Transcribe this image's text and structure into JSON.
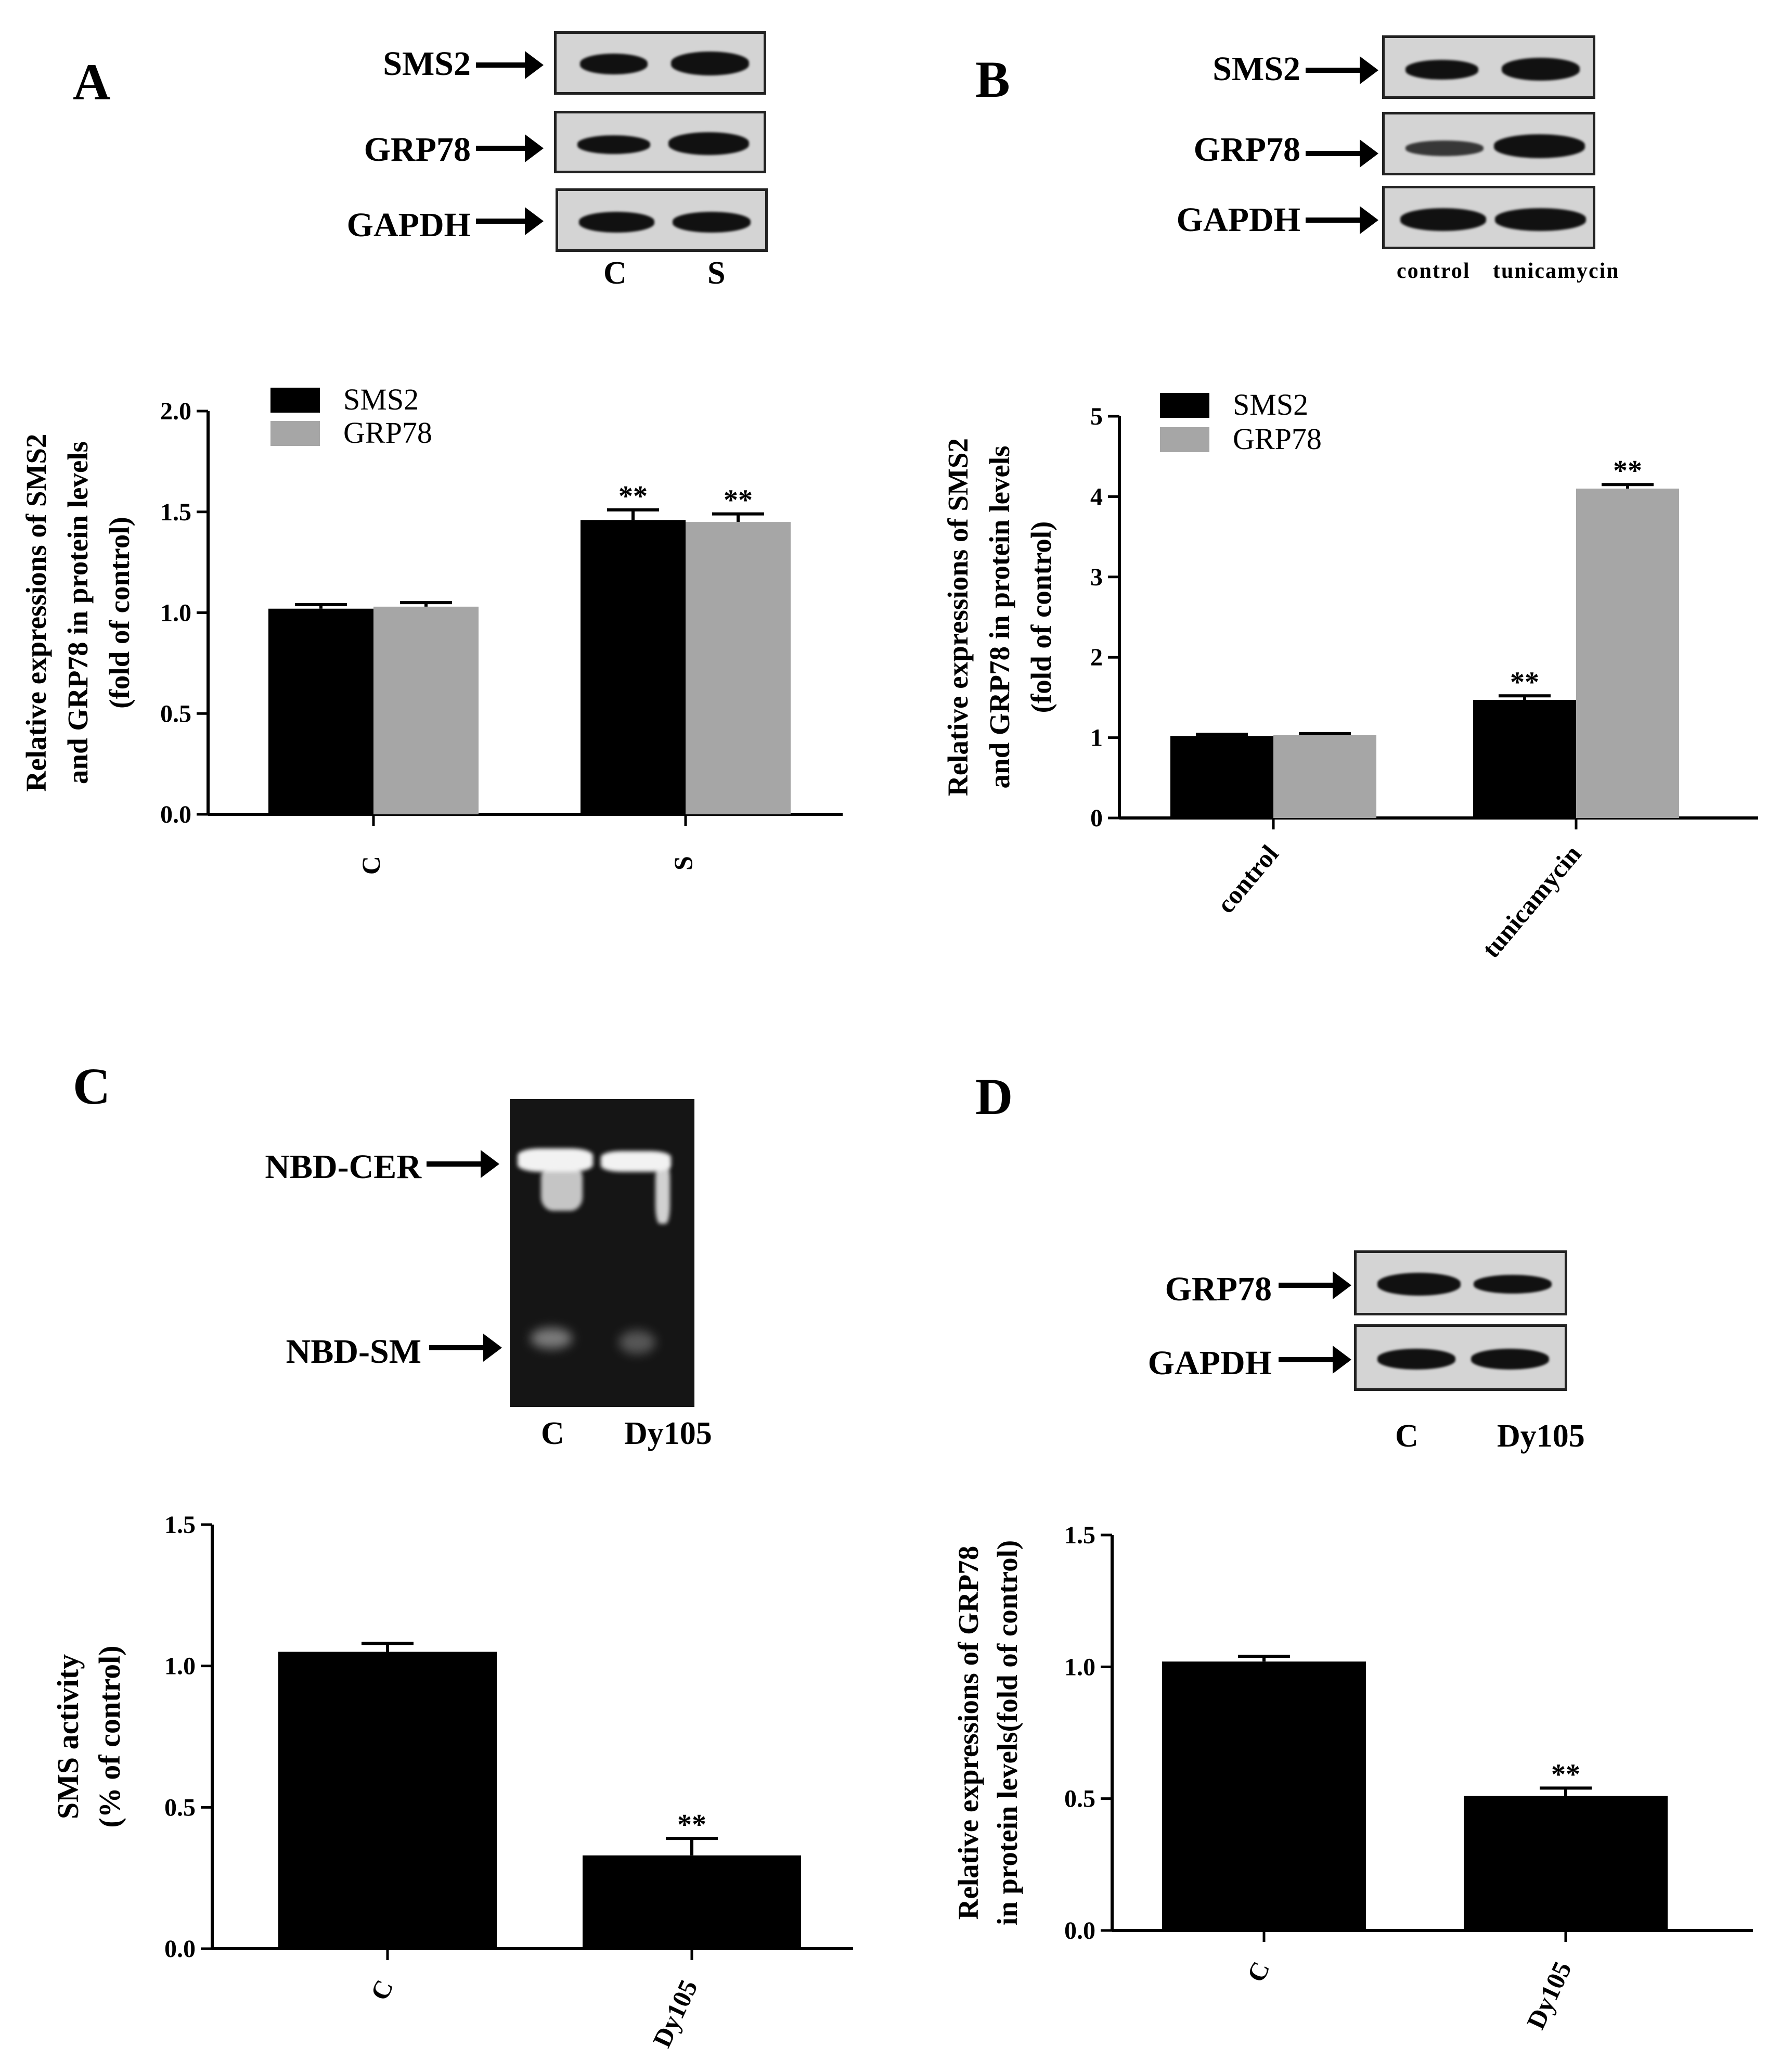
{
  "panels": {
    "A": {
      "letter": "A",
      "blot": {
        "rows": [
          "SMS2",
          "GRP78",
          "GAPDH"
        ],
        "lanes": [
          "C",
          "S"
        ]
      }
    },
    "B": {
      "letter": "B",
      "blot": {
        "rows": [
          "SMS2",
          "GRP78",
          "GAPDH"
        ],
        "lanes": [
          "control",
          "tunicamycin"
        ]
      }
    },
    "C": {
      "letter": "C",
      "tlc": {
        "rows": [
          "NBD-CER",
          "NBD-SM"
        ],
        "lanes": [
          "C",
          "Dy105"
        ]
      }
    },
    "D": {
      "letter": "D",
      "blot": {
        "rows": [
          "GRP78",
          "GAPDH"
        ],
        "lanes": [
          "C",
          "Dy105"
        ]
      }
    }
  },
  "chart_data": [
    {
      "id": "A",
      "type": "bar",
      "categories": [
        "C",
        "S"
      ],
      "series": [
        {
          "name": "SMS2",
          "color": "#000000",
          "values": [
            1.02,
            1.46
          ],
          "errors": [
            0.02,
            0.05
          ],
          "significance": [
            "",
            "**"
          ]
        },
        {
          "name": "GRP78",
          "color": "#a6a6a6",
          "values": [
            1.03,
            1.45
          ],
          "errors": [
            0.02,
            0.04
          ],
          "significance": [
            "",
            "**"
          ]
        }
      ],
      "ylabel_lines": [
        "Relative expressions of SMS2",
        "and GRP78 in protein levels",
        "(fold of control)"
      ],
      "ylim": [
        0,
        2.0
      ],
      "yticks": [
        "0.0",
        "0.5",
        "1.0",
        "1.5",
        "2.0"
      ],
      "legend": "top-left"
    },
    {
      "id": "B",
      "type": "bar",
      "categories": [
        "control",
        "tunicamycin"
      ],
      "series": [
        {
          "name": "SMS2",
          "color": "#000000",
          "values": [
            1.02,
            1.47
          ],
          "errors": [
            0.02,
            0.05
          ],
          "significance": [
            "",
            "**"
          ]
        },
        {
          "name": "GRP78",
          "color": "#a6a6a6",
          "values": [
            1.03,
            4.1
          ],
          "errors": [
            0.02,
            0.05
          ],
          "significance": [
            "",
            "**"
          ]
        }
      ],
      "ylabel_lines": [
        "Relative expressions of SMS2",
        "and GRP78 in protein levels",
        "(fold of control)"
      ],
      "ylim": [
        0,
        5
      ],
      "yticks": [
        "0",
        "1",
        "2",
        "3",
        "4",
        "5"
      ],
      "legend": "top-left"
    },
    {
      "id": "C",
      "type": "bar",
      "categories": [
        "C",
        "Dy105"
      ],
      "series": [
        {
          "color": "#000000",
          "values": [
            1.05,
            0.33
          ],
          "errors": [
            0.03,
            0.06
          ],
          "significance": [
            "",
            "**"
          ]
        }
      ],
      "ylabel_lines": [
        "SMS activity",
        "(% of control)"
      ],
      "ylim": [
        0,
        1.5
      ],
      "yticks": [
        "0.0",
        "0.5",
        "1.0",
        "1.5"
      ]
    },
    {
      "id": "D",
      "type": "bar",
      "categories": [
        "C",
        "Dy105"
      ],
      "series": [
        {
          "color": "#000000",
          "values": [
            1.02,
            0.51
          ],
          "errors": [
            0.02,
            0.03
          ],
          "significance": [
            "",
            "**"
          ]
        }
      ],
      "ylabel_lines": [
        "Relative expressions of GRP78",
        "in protein levels(fold of control)"
      ],
      "ylim": [
        0,
        1.5
      ],
      "yticks": [
        "0.0",
        "0.5",
        "1.0",
        "1.5"
      ]
    }
  ]
}
